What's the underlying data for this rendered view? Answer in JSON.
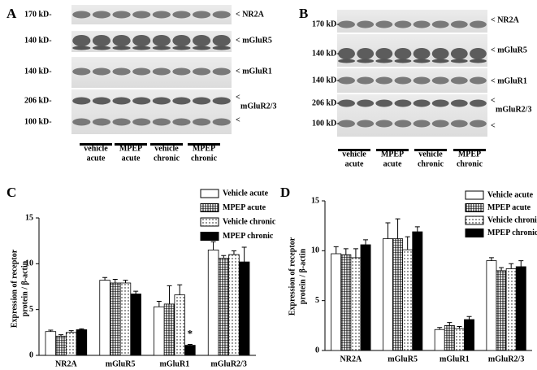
{
  "panel_labels": [
    "A",
    "B",
    "C",
    "D"
  ],
  "blots": [
    {
      "rows": [
        {
          "size": "170 kD-",
          "label": "< NR2A"
        },
        {
          "size": "140 kD-",
          "label": "< mGluR5"
        },
        {
          "size": "140 kD-",
          "label": "< mGluR1"
        },
        {
          "size": "206 kD-",
          "label": "<",
          "name": "mGluR2/3"
        },
        {
          "size": "100 kD-",
          "label": "<"
        }
      ],
      "lanes": [
        [
          "vehicle",
          "acute"
        ],
        [
          "MPEP",
          "acute"
        ],
        [
          "vehicle",
          "chronic"
        ],
        [
          "MPEP",
          "chronic"
        ]
      ]
    },
    {
      "rows": [
        {
          "size": "170 kD-",
          "label": "< NR2A"
        },
        {
          "size": "140 kD-",
          "label": "< mGluR5"
        },
        {
          "size": "140 kD-",
          "label": "< mGluR1"
        },
        {
          "size": "206 kD-",
          "label": "<",
          "name": "mGluR2/3"
        },
        {
          "size": "100 kD-",
          "label": "<"
        }
      ],
      "lanes": [
        [
          "vehicle",
          "acute"
        ],
        [
          "MPEP",
          "acute"
        ],
        [
          "vehicle",
          "chronic"
        ],
        [
          "MPEP",
          "chronic"
        ]
      ]
    }
  ],
  "chart_data": [
    {
      "type": "bar",
      "ylabel": [
        "Expression of receptor",
        "protein / β-actin"
      ],
      "categories": [
        "NR2A",
        "mGluR5",
        "mGluR1",
        "mGluR2/3"
      ],
      "series": [
        {
          "name": "Vehicle acute",
          "fill": "white",
          "values": [
            2.6,
            8.2,
            5.3,
            11.5
          ],
          "errors": [
            0.15,
            0.3,
            0.6,
            0.9
          ]
        },
        {
          "name": "MPEP acute",
          "fill": "hatch",
          "values": [
            2.1,
            7.9,
            5.6,
            10.6
          ],
          "errors": [
            0.15,
            0.4,
            2.0,
            0.3
          ]
        },
        {
          "name": "Vehicle chronic",
          "fill": "dots",
          "values": [
            2.5,
            7.9,
            6.6,
            11.0
          ],
          "errors": [
            0.2,
            0.3,
            1.1,
            0.4
          ]
        },
        {
          "name": "MPEP chronic",
          "fill": "black",
          "values": [
            2.8,
            6.7,
            1.1,
            10.2
          ],
          "errors": [
            0.1,
            0.3,
            0.1,
            1.6
          ]
        }
      ],
      "annotation": "*",
      "ylim": [
        0,
        15
      ],
      "yticks": [
        0,
        5,
        10,
        15
      ],
      "legend": "top-right"
    },
    {
      "type": "bar",
      "ylabel": [
        "Expression of receptor",
        "protein / β-actin"
      ],
      "categories": [
        "NR2A",
        "mGluR5",
        "mGluR1",
        "mGluR2/3"
      ],
      "series": [
        {
          "name": "Vehicle acute",
          "fill": "white",
          "values": [
            9.7,
            11.2,
            2.1,
            9.0
          ],
          "errors": [
            0.7,
            1.6,
            0.2,
            0.3
          ]
        },
        {
          "name": "MPEP acute",
          "fill": "hatch",
          "values": [
            9.6,
            11.2,
            2.5,
            8.0
          ],
          "errors": [
            0.6,
            2.0,
            0.3,
            0.3
          ]
        },
        {
          "name": "Vehicle chronic",
          "fill": "dots",
          "values": [
            9.3,
            10.1,
            2.2,
            8.2
          ],
          "errors": [
            0.9,
            1.3,
            0.2,
            0.5
          ]
        },
        {
          "name": "MPEP chronic",
          "fill": "black",
          "values": [
            10.6,
            11.9,
            3.1,
            8.4
          ],
          "errors": [
            0.5,
            0.5,
            0.3,
            0.6
          ]
        }
      ],
      "ylim": [
        0,
        15
      ],
      "yticks": [
        0,
        5,
        10,
        15
      ],
      "legend": "top-right"
    }
  ]
}
